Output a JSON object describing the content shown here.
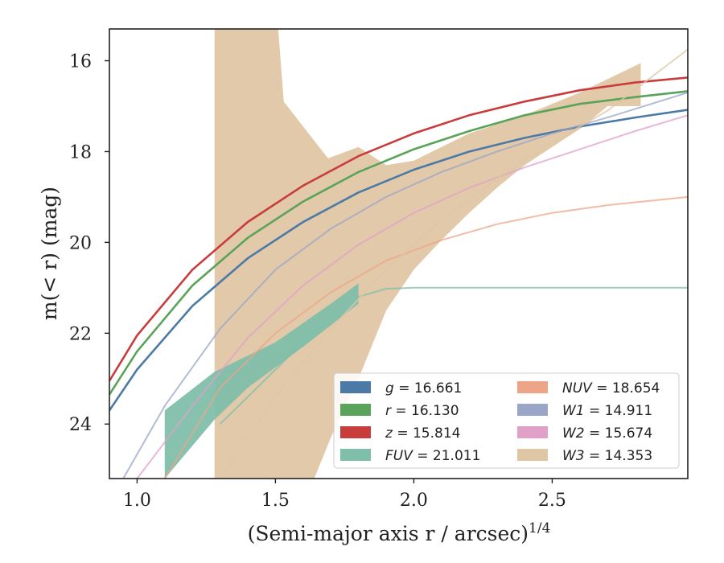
{
  "chart_data": {
    "type": "line",
    "xlabel": "(Semi-major axis r / arcsec)",
    "xlabel_exponent": "1/4",
    "ylabel": "m(< r) (mag)",
    "xlim": [
      0.9,
      2.99
    ],
    "ylim": [
      25.2,
      15.3
    ],
    "y_inverted": true,
    "grid": false,
    "legend_placement": "lower-right",
    "x_ticks": [
      "1.0",
      "1.5",
      "2.0",
      "2.5"
    ],
    "y_ticks": [
      "16",
      "18",
      "20",
      "22",
      "24"
    ],
    "series": [
      {
        "name": "g = 16.661",
        "label_var": "g",
        "label_val": "= 16.661",
        "color": "#4c7aa6",
        "kind": "line",
        "x": [
          0.9,
          1.0,
          1.2,
          1.4,
          1.6,
          1.8,
          2.0,
          2.2,
          2.4,
          2.6,
          2.8,
          2.99
        ],
        "y": [
          23.7,
          22.8,
          21.4,
          20.35,
          19.55,
          18.9,
          18.4,
          18.0,
          17.7,
          17.45,
          17.25,
          17.08
        ]
      },
      {
        "name": "r = 16.130",
        "label_var": "r",
        "label_val": "= 16.130",
        "color": "#5aa35a",
        "kind": "line",
        "x": [
          0.9,
          1.0,
          1.2,
          1.4,
          1.6,
          1.8,
          2.0,
          2.2,
          2.4,
          2.6,
          2.8,
          2.99
        ],
        "y": [
          23.35,
          22.4,
          20.95,
          19.9,
          19.1,
          18.45,
          17.95,
          17.55,
          17.2,
          16.95,
          16.8,
          16.67
        ]
      },
      {
        "name": "z = 15.814",
        "label_var": "z",
        "label_val": "= 15.814",
        "color": "#c93c3c",
        "kind": "line",
        "x": [
          0.9,
          1.0,
          1.2,
          1.4,
          1.6,
          1.8,
          2.0,
          2.2,
          2.4,
          2.6,
          2.8,
          2.99
        ],
        "y": [
          23.05,
          22.05,
          20.6,
          19.55,
          18.75,
          18.1,
          17.6,
          17.2,
          16.9,
          16.65,
          16.48,
          16.37
        ]
      },
      {
        "name": "FUV = 21.011",
        "label_var": "FUV",
        "label_val": "= 21.011",
        "color": "#7fbfaa",
        "kind": "line",
        "x": [
          1.3,
          1.4,
          1.5,
          1.6,
          1.7,
          1.8,
          1.9,
          2.0,
          2.5,
          2.99
        ],
        "y": [
          24.0,
          23.4,
          22.8,
          22.2,
          21.65,
          21.2,
          21.02,
          21.0,
          21.0,
          21.0
        ]
      },
      {
        "name": "NUV = 18.654",
        "label_var": "NUV",
        "label_val": "= 18.654",
        "color": "#eea487",
        "kind": "line",
        "x": [
          1.1,
          1.3,
          1.5,
          1.7,
          1.9,
          2.1,
          2.3,
          2.5,
          2.7,
          2.99
        ],
        "y": [
          25.2,
          23.2,
          22.0,
          21.1,
          20.4,
          19.95,
          19.6,
          19.35,
          19.18,
          19.0
        ]
      },
      {
        "name": "W1 = 14.911",
        "label_var": "W1",
        "label_val": "= 14.911",
        "color": "#9aa6c8",
        "kind": "line",
        "x": [
          0.95,
          1.1,
          1.3,
          1.5,
          1.7,
          1.9,
          2.1,
          2.3,
          2.5,
          2.7,
          2.99
        ],
        "y": [
          25.2,
          23.6,
          21.9,
          20.6,
          19.7,
          19.0,
          18.45,
          18.0,
          17.6,
          17.25,
          16.7
        ]
      },
      {
        "name": "W2 = 15.674",
        "label_var": "W2",
        "label_val": "= 15.674",
        "color": "#e0a0c8",
        "kind": "line",
        "x": [
          1.0,
          1.2,
          1.4,
          1.6,
          1.8,
          2.0,
          2.2,
          2.4,
          2.6,
          2.8,
          2.99
        ],
        "y": [
          25.2,
          23.6,
          22.1,
          20.95,
          20.05,
          19.35,
          18.8,
          18.35,
          17.95,
          17.55,
          17.2
        ]
      },
      {
        "name": "W3 = 14.353",
        "label_var": "W3",
        "label_val": "= 14.353",
        "color": "#dfc6a4",
        "kind": "band",
        "band_upper": [
          [
            1.28,
            15.3
          ],
          [
            1.51,
            15.3
          ],
          [
            1.53,
            16.9
          ],
          [
            1.69,
            18.15
          ],
          [
            1.8,
            17.9
          ],
          [
            1.9,
            18.3
          ],
          [
            2.0,
            18.2
          ],
          [
            2.2,
            17.6
          ],
          [
            2.4,
            17.2
          ],
          [
            2.6,
            16.7
          ],
          [
            2.82,
            16.05
          ]
        ],
        "band_lower": [
          [
            2.82,
            17.0
          ],
          [
            2.7,
            17.0
          ],
          [
            2.6,
            17.5
          ],
          [
            2.5,
            17.9
          ],
          [
            2.4,
            18.3
          ],
          [
            2.3,
            18.8
          ],
          [
            2.2,
            19.35
          ],
          [
            2.1,
            19.95
          ],
          [
            2.0,
            20.6
          ],
          [
            1.9,
            21.5
          ],
          [
            1.8,
            23.0
          ],
          [
            1.7,
            24.3
          ],
          [
            1.64,
            25.2
          ],
          [
            1.28,
            25.2
          ]
        ],
        "trend_x": [
          1.3,
          1.5,
          1.7,
          1.9,
          2.1,
          2.3,
          2.5,
          2.7,
          2.99
        ],
        "trend_y": [
          25.2,
          23.4,
          21.9,
          20.6,
          19.5,
          18.6,
          17.8,
          17.1,
          15.75
        ]
      }
    ]
  }
}
